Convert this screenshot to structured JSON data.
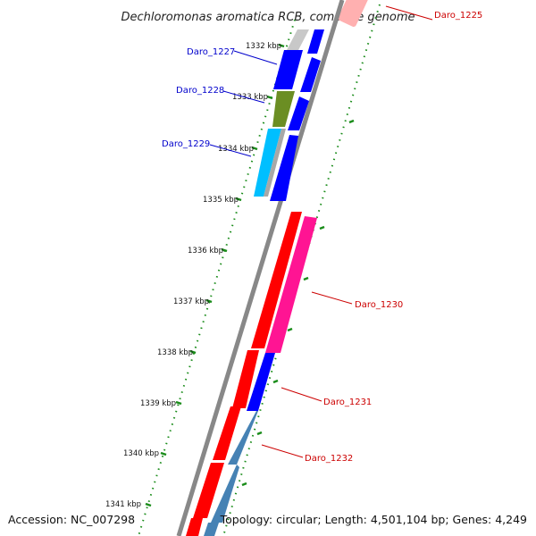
{
  "title": "Dechloromonas aromatica RCB, complete genome",
  "footer": {
    "accession": "Accession: NC_007298",
    "summary": "Topology: circular; Length: 4,501,104 bp; Genes: 4,249"
  },
  "kbp_ticks": [
    "1332 kbp",
    "1333 kbp",
    "1334 kbp",
    "1335 kbp",
    "1336 kbp",
    "1337 kbp",
    "1338 kbp",
    "1339 kbp",
    "1340 kbp",
    "1341 kbp"
  ],
  "gene_labels": [
    {
      "id": "Daro_1225",
      "color": "#cc0000"
    },
    {
      "id": "Daro_1227",
      "color": "#0000cc"
    },
    {
      "id": "Daro_1228",
      "color": "#0000cc"
    },
    {
      "id": "Daro_1229",
      "color": "#0000cc"
    },
    {
      "id": "Daro_1230",
      "color": "#cc0000"
    },
    {
      "id": "Daro_1231",
      "color": "#cc0000"
    },
    {
      "id": "Daro_1232",
      "color": "#cc0000"
    }
  ],
  "colors": {
    "backbone": "#888888",
    "forward_strand": "#ff0000",
    "reverse_strand": "#0000ff",
    "rna": "#ff1493",
    "steelblue": "#4682b4",
    "olive": "#6b8e23",
    "cyan": "#00bfff",
    "tick": "#008000"
  }
}
